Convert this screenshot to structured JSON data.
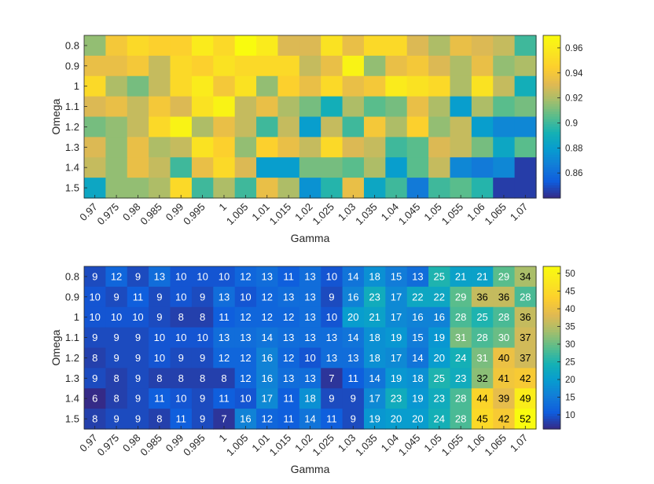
{
  "chart_data": [
    {
      "type": "heatmap",
      "xlabel": "Gamma",
      "ylabel": "Omega",
      "x_ticks": [
        "0.97",
        "0.975",
        "0.98",
        "0.985",
        "0.99",
        "0.995",
        "1",
        "1.005",
        "1.01",
        "1.015",
        "1.02",
        "1.025",
        "1.03",
        "1.035",
        "1.04",
        "1.045",
        "1.05",
        "1.055",
        "1.06",
        "1.065",
        "1.07"
      ],
      "y_ticks": [
        "0.8",
        "0.9",
        "1",
        "1.1",
        "1.2",
        "1.3",
        "1.4",
        "1.5"
      ],
      "colorbar": {
        "range": [
          0.84,
          0.97
        ],
        "ticks": [
          "0.86",
          "0.88",
          "0.9",
          "0.92",
          "0.94",
          "0.96"
        ],
        "tick_values": [
          0.86,
          0.88,
          0.9,
          0.92,
          0.94,
          0.96
        ]
      },
      "show_values": false,
      "values": [
        [
          0.915,
          0.94,
          0.95,
          0.945,
          0.945,
          0.96,
          0.95,
          0.97,
          0.96,
          0.93,
          0.93,
          0.955,
          0.935,
          0.95,
          0.95,
          0.93,
          0.92,
          0.935,
          0.93,
          0.925,
          0.9
        ],
        [
          0.935,
          0.935,
          0.94,
          0.925,
          0.95,
          0.945,
          0.955,
          0.95,
          0.95,
          0.95,
          0.925,
          0.935,
          0.965,
          0.915,
          0.935,
          0.94,
          0.93,
          0.92,
          0.935,
          0.915,
          0.92
        ],
        [
          0.95,
          0.92,
          0.91,
          0.925,
          0.95,
          0.96,
          0.94,
          0.955,
          0.915,
          0.945,
          0.935,
          0.95,
          0.935,
          0.94,
          0.96,
          0.955,
          0.95,
          0.92,
          0.955,
          0.925,
          0.89
        ],
        [
          0.93,
          0.935,
          0.925,
          0.94,
          0.93,
          0.955,
          0.965,
          0.925,
          0.935,
          0.92,
          0.91,
          0.89,
          0.92,
          0.905,
          0.91,
          0.935,
          0.92,
          0.88,
          0.92,
          0.905,
          0.91
        ],
        [
          0.91,
          0.915,
          0.925,
          0.95,
          0.965,
          0.92,
          0.935,
          0.925,
          0.9,
          0.925,
          0.88,
          0.925,
          0.9,
          0.94,
          0.92,
          0.945,
          0.915,
          0.925,
          0.88,
          0.87,
          0.87
        ],
        [
          0.93,
          0.915,
          0.935,
          0.92,
          0.925,
          0.955,
          0.945,
          0.915,
          0.945,
          0.935,
          0.925,
          0.95,
          0.93,
          0.925,
          0.9,
          0.905,
          0.93,
          0.925,
          0.91,
          0.885,
          0.905
        ],
        [
          0.925,
          0.915,
          0.935,
          0.925,
          0.9,
          0.935,
          0.95,
          0.93,
          0.88,
          0.88,
          0.91,
          0.91,
          0.905,
          0.92,
          0.88,
          0.905,
          0.925,
          0.87,
          0.865,
          0.87,
          0.845
        ],
        [
          0.885,
          0.915,
          0.915,
          0.92,
          0.95,
          0.9,
          0.92,
          0.9,
          0.935,
          0.92,
          0.875,
          0.895,
          0.935,
          0.885,
          0.9,
          0.865,
          0.9,
          0.905,
          0.895,
          0.845,
          0.845
        ]
      ]
    },
    {
      "type": "heatmap",
      "xlabel": "Gamma",
      "ylabel": "Omega",
      "x_ticks": [
        "0.97",
        "0.975",
        "0.98",
        "0.985",
        "0.99",
        "0.995",
        "1",
        "1.005",
        "1.01",
        "1.015",
        "1.02",
        "1.025",
        "1.03",
        "1.035",
        "1.04",
        "1.045",
        "1.05",
        "1.055",
        "1.06",
        "1.065",
        "1.07"
      ],
      "y_ticks": [
        "0.8",
        "0.9",
        "1",
        "1.1",
        "1.2",
        "1.3",
        "1.4",
        "1.5"
      ],
      "colorbar": {
        "range": [
          6,
          52
        ],
        "ticks": [
          "10",
          "15",
          "20",
          "25",
          "30",
          "35",
          "40",
          "45",
          "50"
        ],
        "tick_values": [
          10,
          15,
          20,
          25,
          30,
          35,
          40,
          45,
          50
        ]
      },
      "show_values": true,
      "values": [
        [
          9,
          12,
          9,
          13,
          10,
          10,
          10,
          12,
          13,
          11,
          13,
          10,
          14,
          18,
          15,
          13,
          25,
          21,
          21,
          29,
          34
        ],
        [
          10,
          9,
          11,
          9,
          10,
          9,
          13,
          10,
          12,
          13,
          13,
          9,
          16,
          23,
          17,
          22,
          22,
          29,
          36,
          36,
          28
        ],
        [
          10,
          10,
          10,
          9,
          8,
          8,
          11,
          12,
          12,
          12,
          13,
          10,
          20,
          21,
          17,
          16,
          16,
          28,
          25,
          28,
          36
        ],
        [
          9,
          9,
          9,
          10,
          10,
          10,
          13,
          13,
          14,
          13,
          13,
          13,
          14,
          18,
          19,
          15,
          19,
          31,
          28,
          30,
          37
        ],
        [
          8,
          9,
          9,
          10,
          9,
          9,
          12,
          12,
          16,
          12,
          10,
          13,
          13,
          18,
          17,
          14,
          20,
          24,
          31,
          40,
          37
        ],
        [
          9,
          8,
          9,
          8,
          8,
          8,
          8,
          12,
          16,
          13,
          13,
          7,
          11,
          14,
          19,
          18,
          25,
          23,
          32,
          41,
          42
        ],
        [
          6,
          8,
          9,
          11,
          10,
          9,
          11,
          10,
          17,
          11,
          18,
          9,
          9,
          17,
          23,
          19,
          23,
          28,
          44,
          39,
          49
        ],
        [
          8,
          9,
          9,
          8,
          11,
          9,
          7,
          16,
          12,
          11,
          14,
          11,
          9,
          19,
          20,
          20,
          24,
          28,
          45,
          42,
          52
        ]
      ]
    }
  ]
}
